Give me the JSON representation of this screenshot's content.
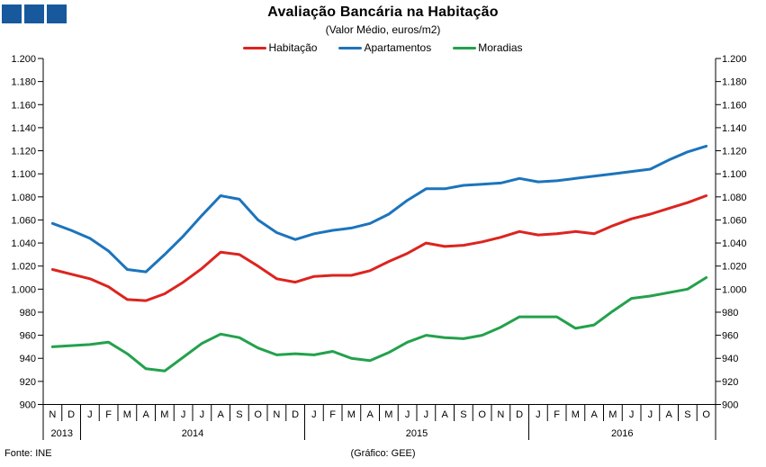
{
  "header": {
    "title": "Avaliação Bancária na Habitação",
    "subtitle": "(Valor Médio, euros/m2)"
  },
  "decor": {
    "square_color": "#17599C",
    "square_count": 3
  },
  "footer": {
    "source": "Fonte: INE",
    "credit": "(Gráfico: GEE)"
  },
  "colors": {
    "habitacao": "#DC241F",
    "apartamentos": "#1C74BC",
    "moradias": "#23A14C",
    "axis": "#000000"
  },
  "chart_data": {
    "type": "line",
    "title": "Avaliação Bancária na Habitação",
    "subtitle": "(Valor Médio, euros/m2)",
    "ylabel": "euros/m2",
    "ylim": [
      900,
      1200
    ],
    "grid": false,
    "legend_position": "top-center",
    "yticks": [
      1200,
      1180,
      1160,
      1140,
      1120,
      1100,
      1080,
      1060,
      1040,
      1020,
      1000,
      980,
      960,
      940,
      920,
      900
    ],
    "months": [
      "N",
      "D",
      "J",
      "F",
      "M",
      "A",
      "M",
      "J",
      "J",
      "A",
      "S",
      "O",
      "N",
      "D",
      "J",
      "F",
      "M",
      "A",
      "M",
      "J",
      "J",
      "A",
      "S",
      "O",
      "N",
      "D",
      "J",
      "F",
      "M",
      "A",
      "M",
      "J",
      "J",
      "A",
      "S",
      "O"
    ],
    "years": [
      {
        "label": "2013",
        "months": 2
      },
      {
        "label": "2014",
        "months": 12
      },
      {
        "label": "2015",
        "months": 12
      },
      {
        "label": "2016",
        "months": 10
      }
    ],
    "series": [
      {
        "name": "Habitação",
        "color": "#DC241F",
        "values": [
          1017,
          1013,
          1009,
          1002,
          991,
          990,
          996,
          1006,
          1018,
          1032,
          1030,
          1020,
          1009,
          1006,
          1011,
          1012,
          1012,
          1016,
          1024,
          1031,
          1040,
          1037,
          1038,
          1041,
          1045,
          1050,
          1047,
          1048,
          1050,
          1048,
          1055,
          1061,
          1065,
          1070,
          1075,
          1081
        ]
      },
      {
        "name": "Apartamentos",
        "color": "#1C74BC",
        "values": [
          1057,
          1051,
          1044,
          1033,
          1017,
          1015,
          1030,
          1046,
          1064,
          1081,
          1078,
          1060,
          1049,
          1043,
          1048,
          1051,
          1053,
          1057,
          1065,
          1077,
          1087,
          1087,
          1090,
          1091,
          1092,
          1096,
          1093,
          1094,
          1096,
          1098,
          1100,
          1102,
          1104,
          1112,
          1119,
          1124
        ]
      },
      {
        "name": "Moradias",
        "color": "#23A14C",
        "values": [
          950,
          951,
          952,
          954,
          944,
          931,
          929,
          941,
          953,
          961,
          958,
          949,
          943,
          944,
          943,
          946,
          940,
          938,
          945,
          954,
          960,
          958,
          957,
          960,
          967,
          976,
          976,
          976,
          966,
          969,
          981,
          992,
          994,
          997,
          1000,
          1010
        ]
      }
    ]
  },
  "legend": {
    "items": [
      {
        "label": "Habitação",
        "color": "#DC241F"
      },
      {
        "label": "Apartamentos",
        "color": "#1C74BC"
      },
      {
        "label": "Moradias",
        "color": "#23A14C"
      }
    ]
  }
}
